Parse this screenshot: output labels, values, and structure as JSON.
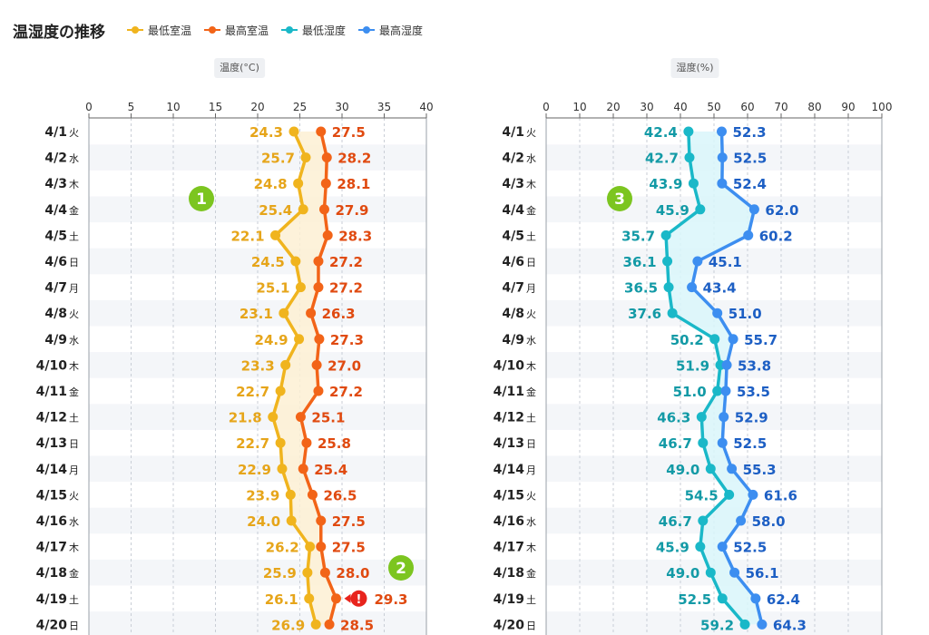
{
  "header": {
    "title": "温湿度の推移"
  },
  "legend": [
    {
      "label": "最低室温",
      "color": "#f0b41e"
    },
    {
      "label": "最高室温",
      "color": "#f26418"
    },
    {
      "label": "最低湿度",
      "color": "#1ab8c8"
    },
    {
      "label": "最高湿度",
      "color": "#3d8ef0"
    }
  ],
  "colors": {
    "min_temp_label": "#e6a51a",
    "max_temp_label": "#e04a10",
    "min_hum_label": "#139aa6",
    "max_hum_label": "#1d5fc4",
    "temp_band": "#fdf0d3",
    "hum_band": "#d9f6fa",
    "alert": "#e8241d",
    "badge": "#7cc520"
  },
  "markers": [
    {
      "chart": 0,
      "label": "1"
    },
    {
      "chart": 0,
      "label": "2"
    },
    {
      "chart": 1,
      "label": "3"
    }
  ],
  "chart_data": [
    {
      "type": "line",
      "title": "",
      "xlabel": "温度(°C)",
      "ylabel": "",
      "orientation": "horizontal",
      "xlim": [
        0,
        40
      ],
      "xticks": [
        0,
        5,
        10,
        15,
        20,
        25,
        30,
        35,
        40
      ],
      "categories": [
        "4/1",
        "4/2",
        "4/3",
        "4/4",
        "4/5",
        "4/6",
        "4/7",
        "4/8",
        "4/9",
        "4/10",
        "4/11",
        "4/12",
        "4/13",
        "4/14",
        "4/15",
        "4/16",
        "4/17",
        "4/18",
        "4/19",
        "4/20"
      ],
      "weekdays": [
        "火",
        "水",
        "木",
        "金",
        "土",
        "日",
        "月",
        "火",
        "水",
        "木",
        "金",
        "土",
        "日",
        "月",
        "火",
        "水",
        "木",
        "金",
        "土",
        "日"
      ],
      "series": [
        {
          "name": "最低室温",
          "values": [
            24.3,
            25.7,
            24.8,
            25.4,
            22.1,
            24.5,
            25.1,
            23.1,
            24.9,
            23.3,
            22.7,
            21.8,
            22.7,
            22.9,
            23.9,
            24.0,
            26.2,
            25.9,
            26.1,
            26.9
          ]
        },
        {
          "name": "最高室温",
          "values": [
            27.5,
            28.2,
            28.1,
            27.9,
            28.3,
            27.2,
            27.2,
            26.3,
            27.3,
            27.0,
            27.2,
            25.1,
            25.8,
            25.4,
            26.5,
            27.5,
            27.5,
            28.0,
            29.3,
            28.5
          ]
        }
      ],
      "grid": true
    },
    {
      "type": "line",
      "title": "",
      "xlabel": "湿度(%)",
      "ylabel": "",
      "orientation": "horizontal",
      "xlim": [
        0,
        100
      ],
      "xticks": [
        0,
        10,
        20,
        30,
        40,
        50,
        60,
        70,
        80,
        90,
        100
      ],
      "categories": [
        "4/1",
        "4/2",
        "4/3",
        "4/4",
        "4/5",
        "4/6",
        "4/7",
        "4/8",
        "4/9",
        "4/10",
        "4/11",
        "4/12",
        "4/13",
        "4/14",
        "4/15",
        "4/16",
        "4/17",
        "4/18",
        "4/19",
        "4/20"
      ],
      "weekdays": [
        "火",
        "水",
        "木",
        "金",
        "土",
        "日",
        "月",
        "火",
        "水",
        "木",
        "金",
        "土",
        "日",
        "月",
        "火",
        "水",
        "木",
        "金",
        "土",
        "日"
      ],
      "series": [
        {
          "name": "最低湿度",
          "values": [
            42.4,
            42.7,
            43.9,
            45.9,
            35.7,
            36.1,
            36.5,
            37.6,
            50.2,
            51.9,
            51.0,
            46.3,
            46.7,
            49.0,
            54.5,
            46.7,
            45.9,
            49.0,
            52.5,
            59.2
          ]
        },
        {
          "name": "最高湿度",
          "values": [
            52.3,
            52.5,
            52.4,
            62.0,
            60.2,
            45.1,
            43.4,
            51.0,
            55.7,
            53.8,
            53.5,
            52.9,
            52.5,
            55.3,
            61.6,
            58.0,
            52.5,
            56.1,
            62.4,
            64.3
          ]
        }
      ],
      "grid": true
    }
  ]
}
